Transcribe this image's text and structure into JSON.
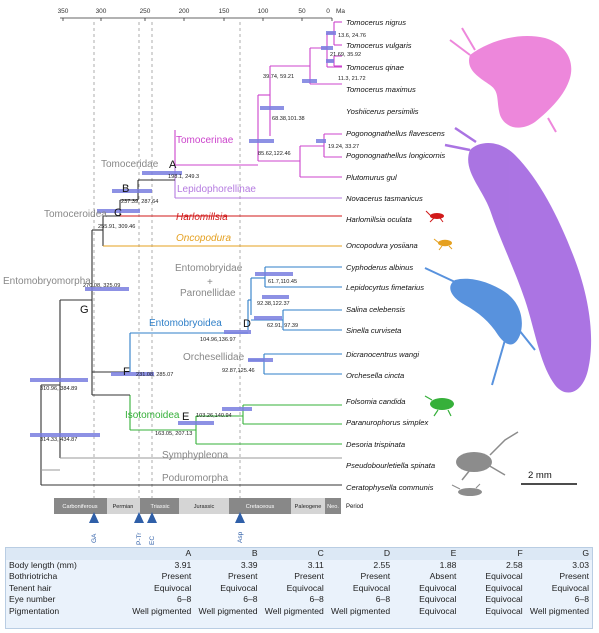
{
  "time_axis": {
    "ticks": [
      "350",
      "300",
      "250",
      "200",
      "150",
      "100",
      "50",
      "0"
    ],
    "unit": "Ma"
  },
  "taxa": [
    "Tomocerus nigrus",
    "Tomocerus vulgaris",
    "Tomocerus qinae",
    "Tomocerus maximus",
    "Yoshiicerus persimilis",
    "Pogonognathellus flavescens",
    "Pogonognathellus longicornis",
    "Plutomurus gul",
    "Novacerus tasmanicus",
    "Harlomillsia oculata",
    "Oncopodura yosiiana",
    "Cyphoderus albinus",
    "Lepidocyrtus fimetarius",
    "Salina celebensis",
    "Sinella curviseta",
    "Dicranocentrus wangi",
    "Orchesella cincta",
    "Folsomia candida",
    "Paranurophorus simplex",
    "Desoria trispinata",
    "Pseudobourletiella spinata",
    "Ceratophysella communis"
  ],
  "clades": {
    "tomocerinae": "Tomocerinae",
    "lepidophorellinae": "Lepidophorellinae",
    "tomoceridae": "Tomoceridae",
    "harlomillsia": "Harlomillsia",
    "oncopodura": "Oncopodura",
    "tomoceroidea": "Tomoceroidea",
    "entomobryidae": "Entomobryidae",
    "plus": "+",
    "paronellidae": "Paronellidae",
    "entomobryoidea": "Entomobryoidea",
    "orchesellidae": "Orchesellidae",
    "entomobryomorpha": "Entomobryomorpha",
    "isotomoidea": "Isotomoidea",
    "symphypleona": "Symphypleona",
    "poduromorpha": "Poduromorpha"
  },
  "node_letters": [
    "A",
    "B",
    "C",
    "D",
    "E",
    "F",
    "G"
  ],
  "node_ages": [
    "13.6, 24.76",
    "21.69, 35.92",
    "11.3, 21.72",
    "39.74, 59.21",
    "68.38,101.38",
    "19.24, 33.27",
    "85.62,122.46",
    "198.1, 249.3",
    "237.39, 287.64",
    "255.91, 309.46",
    "270.08, 325.09",
    "61.7,110.45",
    "92.38,122.37",
    "62.91, 97.39",
    "104.96,136.97",
    "92.87,125.46",
    "231.08, 285.07",
    "103.26,140.94",
    "163.05, 207.13",
    "310.96, 384.89",
    "314.33, 434.87"
  ],
  "periods": [
    "Carboniferous",
    "Permian",
    "Triassic",
    "Jurassic",
    "Cretaceous",
    "Paleogene",
    "Neo.",
    "Period"
  ],
  "events": [
    "GA",
    "P-Tr",
    "EC",
    "Asp"
  ],
  "scale_bar": "2 mm",
  "traits": {
    "columns": [
      "",
      "A",
      "B",
      "C",
      "D",
      "E",
      "F",
      "G"
    ],
    "rows": [
      [
        "Body length (mm)",
        "3.91",
        "3.39",
        "3.11",
        "2.55",
        "1.88",
        "2.58",
        "3.03"
      ],
      [
        "Bothriotricha",
        "Present",
        "Present",
        "Present",
        "Present",
        "Absent",
        "Equivocal",
        "Present"
      ],
      [
        "Tenent hair",
        "Equivocal",
        "Equivocal",
        "Equivocal",
        "Equivocal",
        "Equivocal",
        "Equivocal",
        "Equivocal"
      ],
      [
        "Eye number",
        "6–8",
        "6–8",
        "6–8",
        "6–8",
        "Equivocal",
        "Equivocal",
        "6–8"
      ],
      [
        "Pigmentation",
        "Well pigmented",
        "Well pigmented",
        "Well pigmented",
        "Well pigmented",
        "Equivocal",
        "Equivocal",
        "Well pigmented"
      ]
    ]
  },
  "colors": {
    "tomocerinae": "#cc44cc",
    "lepidophorellinae": "#b57be0",
    "harlomillsia": "#d11a1a",
    "oncopodura": "#e5a01f",
    "entomobryoidea": "#2f7fc8",
    "isotomoidea": "#36b03a",
    "outgroup": "#999999",
    "node_bar": "#7a7ee0"
  }
}
